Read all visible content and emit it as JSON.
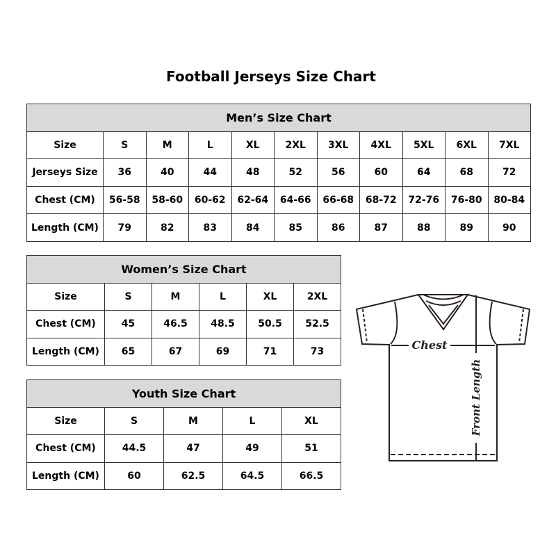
{
  "title": "Football Jerseys Size Chart",
  "mens": {
    "heading": "Men’s Size Chart",
    "rows": [
      [
        "Size",
        "S",
        "M",
        "L",
        "XL",
        "2XL",
        "3XL",
        "4XL",
        "5XL",
        "6XL",
        "7XL"
      ],
      [
        "Jerseys Size",
        "36",
        "40",
        "44",
        "48",
        "52",
        "56",
        "60",
        "64",
        "68",
        "72"
      ],
      [
        "Chest (CM)",
        "56-58",
        "58-60",
        "60-62",
        "62-64",
        "64-66",
        "66-68",
        "68-72",
        "72-76",
        "76-80",
        "80-84"
      ],
      [
        "Length (CM)",
        "79",
        "82",
        "83",
        "84",
        "85",
        "86",
        "87",
        "88",
        "89",
        "90"
      ]
    ]
  },
  "womens": {
    "heading": "Women’s Size Chart",
    "rows": [
      [
        "Size",
        "S",
        "M",
        "L",
        "XL",
        "2XL"
      ],
      [
        "Chest (CM)",
        "45",
        "46.5",
        "48.5",
        "50.5",
        "52.5"
      ],
      [
        "Length (CM)",
        "65",
        "67",
        "69",
        "71",
        "73"
      ]
    ]
  },
  "youth": {
    "heading": "Youth Size Chart",
    "rows": [
      [
        "Size",
        "S",
        "M",
        "L",
        "XL"
      ],
      [
        "Chest (CM)",
        "44.5",
        "47",
        "49",
        "51"
      ],
      [
        "Length (CM)",
        "60",
        "62.5",
        "64.5",
        "66.5"
      ]
    ]
  },
  "diagram": {
    "chest_label": "Chest",
    "length_label": "Front Length"
  },
  "colors": {
    "header_bg": "#d9d9d9",
    "border": "#333333"
  }
}
